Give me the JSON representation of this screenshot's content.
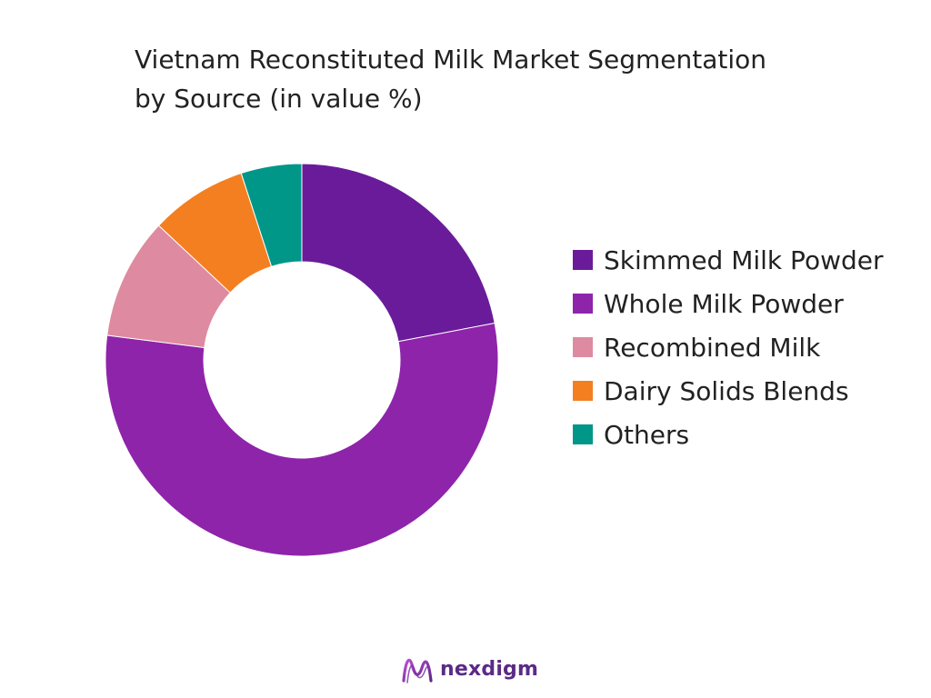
{
  "chart_data": {
    "type": "pie",
    "title_lines": [
      "Vietnam Reconstituted Milk Market Segmentation",
      "by Source (in value %)"
    ],
    "categories": [
      "Skimmed Milk Powder",
      "Whole Milk Powder",
      "Recombined Milk",
      "Dairy Solids Blends",
      "Others"
    ],
    "values": [
      22,
      55,
      10,
      8,
      5
    ],
    "colors": [
      "#6a1b9a",
      "#8e24aa",
      "#de8aa0",
      "#f47f20",
      "#009688"
    ],
    "donut": true,
    "legend_position": "right",
    "data_labels": false
  },
  "brand": {
    "name": "nexdigm",
    "logo_icon": "nexdigm-wave-icon",
    "color": "#5b2a86"
  }
}
